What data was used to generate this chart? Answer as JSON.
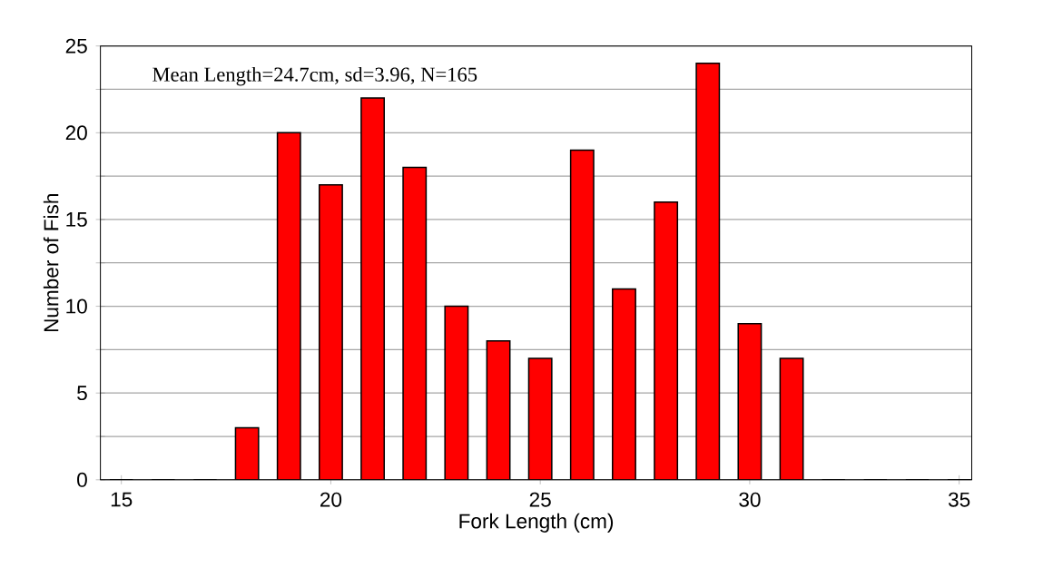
{
  "chart_data": {
    "type": "bar",
    "xlabel": "Fork Length (cm)",
    "ylabel": "Number of Fish",
    "annotations": [
      "Mean Length=24.7cm, sd=3.96, N=165"
    ],
    "x": [
      15,
      16,
      17,
      18,
      19,
      20,
      21,
      22,
      23,
      24,
      25,
      26,
      27,
      28,
      29,
      30,
      31,
      32,
      33,
      34,
      35
    ],
    "values": [
      0,
      0,
      0,
      3,
      20,
      17,
      22,
      18,
      10,
      8,
      7,
      19,
      11,
      16,
      24,
      9,
      7,
      0,
      0,
      0,
      0
    ],
    "color": "#ff0000",
    "xlim": [
      14.5,
      35.3
    ],
    "ylim": [
      0,
      25
    ],
    "xticks": [
      15,
      20,
      25,
      30,
      35
    ],
    "yticks": [
      0,
      {
        "value": 2.5,
        "label": null
      },
      5,
      {
        "value": 7.5,
        "label": null
      },
      10,
      {
        "value": 12.5,
        "label": null
      },
      15,
      {
        "value": 17.5,
        "label": null
      },
      20,
      {
        "value": 22.5,
        "label": null
      },
      25
    ],
    "grid": "y"
  }
}
